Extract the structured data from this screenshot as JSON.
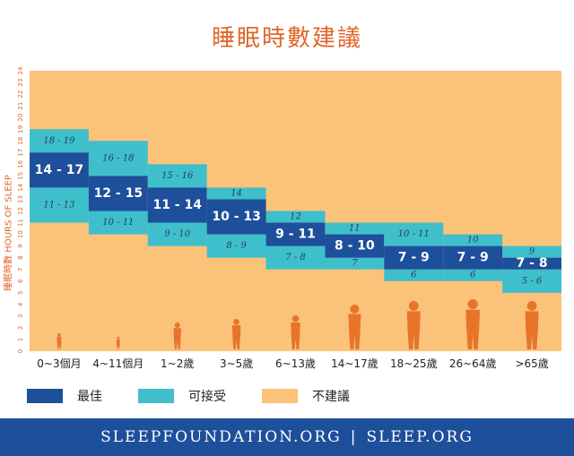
{
  "title": "睡眠時數建議",
  "chart_data": {
    "type": "bar",
    "ylabel": "睡眠時數  HOURS OF SLEEP",
    "ylim": [
      0,
      24
    ],
    "yticks": [
      "0",
      "1",
      "2",
      "3",
      "4",
      "5",
      "6",
      "7",
      "8",
      "9",
      "10",
      "11",
      "12",
      "13",
      "14",
      "15",
      "16",
      "17",
      "18",
      "19",
      "20",
      "21",
      "22",
      "23",
      "24"
    ],
    "categories": [
      "0~3個月",
      "4~11個月",
      "1~2歲",
      "3~5歲",
      "6~13歲",
      "14~17歲",
      "18~25歲",
      "26~64歲",
      ">65歲"
    ],
    "best": [
      {
        "low": 14,
        "high": 17,
        "label": "14 - 17"
      },
      {
        "low": 12,
        "high": 15,
        "label": "12 - 15"
      },
      {
        "low": 11,
        "high": 14,
        "label": "11 - 14"
      },
      {
        "low": 10,
        "high": 13,
        "label": "10 - 13"
      },
      {
        "low": 9,
        "high": 11,
        "label": "9 - 11"
      },
      {
        "low": 8,
        "high": 10,
        "label": "8 - 10"
      },
      {
        "low": 7,
        "high": 9,
        "label": "7 - 9"
      },
      {
        "low": 7,
        "high": 9,
        "label": "7 - 9"
      },
      {
        "low": 7,
        "high": 8,
        "label": "7 - 8"
      }
    ],
    "acceptable_upper": [
      {
        "low": 17,
        "high": 19,
        "label": "18 - 19"
      },
      {
        "low": 15,
        "high": 18,
        "label": "16 - 18"
      },
      {
        "low": 14,
        "high": 16,
        "label": "15 - 16"
      },
      {
        "low": 13,
        "high": 14,
        "label": "14"
      },
      {
        "low": 11,
        "high": 12,
        "label": "12"
      },
      {
        "low": 10,
        "high": 11,
        "label": "11"
      },
      {
        "low": 9,
        "high": 11,
        "label": "10 - 11"
      },
      {
        "low": 9,
        "high": 10,
        "label": "10"
      },
      {
        "low": 8,
        "high": 9,
        "label": "9"
      }
    ],
    "acceptable_lower": [
      {
        "low": 11,
        "high": 14,
        "label": "11 - 13"
      },
      {
        "low": 10,
        "high": 12,
        "label": "10 - 11"
      },
      {
        "low": 9,
        "high": 11,
        "label": "9 - 10"
      },
      {
        "low": 8,
        "high": 10,
        "label": "8 - 9"
      },
      {
        "low": 7,
        "high": 9,
        "label": "7 - 8"
      },
      {
        "low": 7,
        "high": 8,
        "label": "7"
      },
      {
        "low": 6,
        "high": 7,
        "label": "6"
      },
      {
        "low": 6,
        "high": 7,
        "label": "6"
      },
      {
        "low": 5,
        "high": 7,
        "label": "5 - 6"
      }
    ],
    "legend": [
      {
        "key": "best",
        "label": "最佳",
        "color": "#1d4f9b"
      },
      {
        "key": "acceptable",
        "label": "可接受",
        "color": "#3ebfcb"
      },
      {
        "key": "not_recommended",
        "label": "不建議",
        "color": "#fbc27a"
      }
    ]
  },
  "colors": {
    "background": "#fbc27a",
    "best": "#1d4f9b",
    "acceptable": "#3ebfcb",
    "silhouette": "#e8742a",
    "title": "#e0662a"
  },
  "footer": {
    "left": "SLEEPFOUNDATION.ORG",
    "separator": "|",
    "right": "SLEEP.ORG"
  }
}
